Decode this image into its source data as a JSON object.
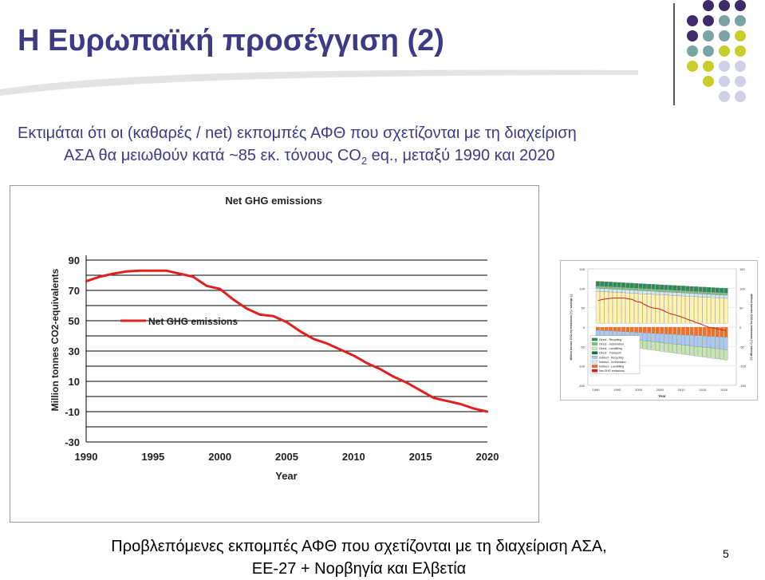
{
  "slide": {
    "title": "Η Ευρωπαϊκή προσέγγιση (2)",
    "intro_line1": "Εκτιμάται ότι οι (καθαρές / net) εκπομπές ΑΦΘ που σχετίζονται με τη διαχείριση",
    "intro_line2_a": "ΑΣΑ θα μειωθούν κατά ~85 εκ. τόνους CO",
    "intro_line2_sub": "2",
    "intro_line2_b": " eq., μεταξύ 1990 και 2020",
    "caption_line1": "Προβλεπόμενες εκπομπές ΑΦΘ που σχετίζονται με τη διαχείριση ΑΣΑ,",
    "caption_line2": "ΕΕ-27 + Νορβηγία και Ελβετία",
    "page_number": "5"
  },
  "colors": {
    "title": "#3f3a86",
    "series_line": "#e02020",
    "grid": "#000000",
    "dot_purple": "#3f2a6b",
    "dot_teal": "#7aa3a3",
    "dot_yellow": "#c8cf2a",
    "dot_lavender": "#d0d0e8"
  },
  "chart_data": [
    {
      "type": "line",
      "title": "Net GHG emissions",
      "xlabel": "Year",
      "ylabel": "Million tonnes CO2-equivalents",
      "xlim": [
        1990,
        2020
      ],
      "ylim": [
        -30,
        90
      ],
      "x_ticks": [
        "1990",
        "1995",
        "2000",
        "2005",
        "2010",
        "2015",
        "2020"
      ],
      "y_ticks": [
        "-30",
        "-10",
        "10",
        "30",
        "50",
        "70",
        "90"
      ],
      "grid": true,
      "legend": "upper-left-middle",
      "series": [
        {
          "name": "Net GHG emissions",
          "x": [
            1990,
            1991,
            1992,
            1993,
            1994,
            1995,
            1996,
            1997,
            1998,
            1999,
            2000,
            2001,
            2002,
            2003,
            2004,
            2005,
            2006,
            2007,
            2008,
            2009,
            2010,
            2011,
            2012,
            2013,
            2014,
            2015,
            2016,
            2017,
            2018,
            2019,
            2020
          ],
          "y": [
            76,
            79,
            81,
            82.5,
            83,
            83,
            83,
            81,
            79,
            73,
            71,
            64,
            58,
            54,
            53,
            49,
            43,
            38,
            35,
            31,
            27,
            22,
            18,
            13,
            9,
            4,
            -1,
            -3,
            -5,
            -8,
            -10
          ]
        }
      ]
    }
  ],
  "thumbnail": {
    "ylabel_left": "Million tonnes CO2-eq emissions (+) / savings (-)",
    "ylabel_right": "Million tonnes CO2-eq emissions (+) / savings (-)",
    "xlabel": "Year",
    "x_ticks": [
      "1990",
      "1995",
      "2000",
      "2005",
      "2010",
      "2015",
      "2020"
    ],
    "y_ticks": [
      "150",
      "100",
      "50",
      "0",
      "-50",
      "-100",
      "-150"
    ],
    "legend": [
      {
        "label": "Direct - Recycling",
        "color": "#2e8b57"
      },
      {
        "label": "Direct - Incineration",
        "color": "#7fbf7f"
      },
      {
        "label": "Direct - Landfilling",
        "color": "#c6e5b3"
      },
      {
        "label": "Direct - Transport",
        "color": "#1f6f3f"
      },
      {
        "label": "Indirect - Recycling",
        "color": "#a9c9ee"
      },
      {
        "label": "Indirect - Incineration",
        "color": "#cfe8f6"
      },
      {
        "label": "Indirect - Landfilling",
        "color": "#e8732f"
      },
      {
        "label": "Net GHG emissions",
        "color": "#d02020"
      }
    ]
  }
}
